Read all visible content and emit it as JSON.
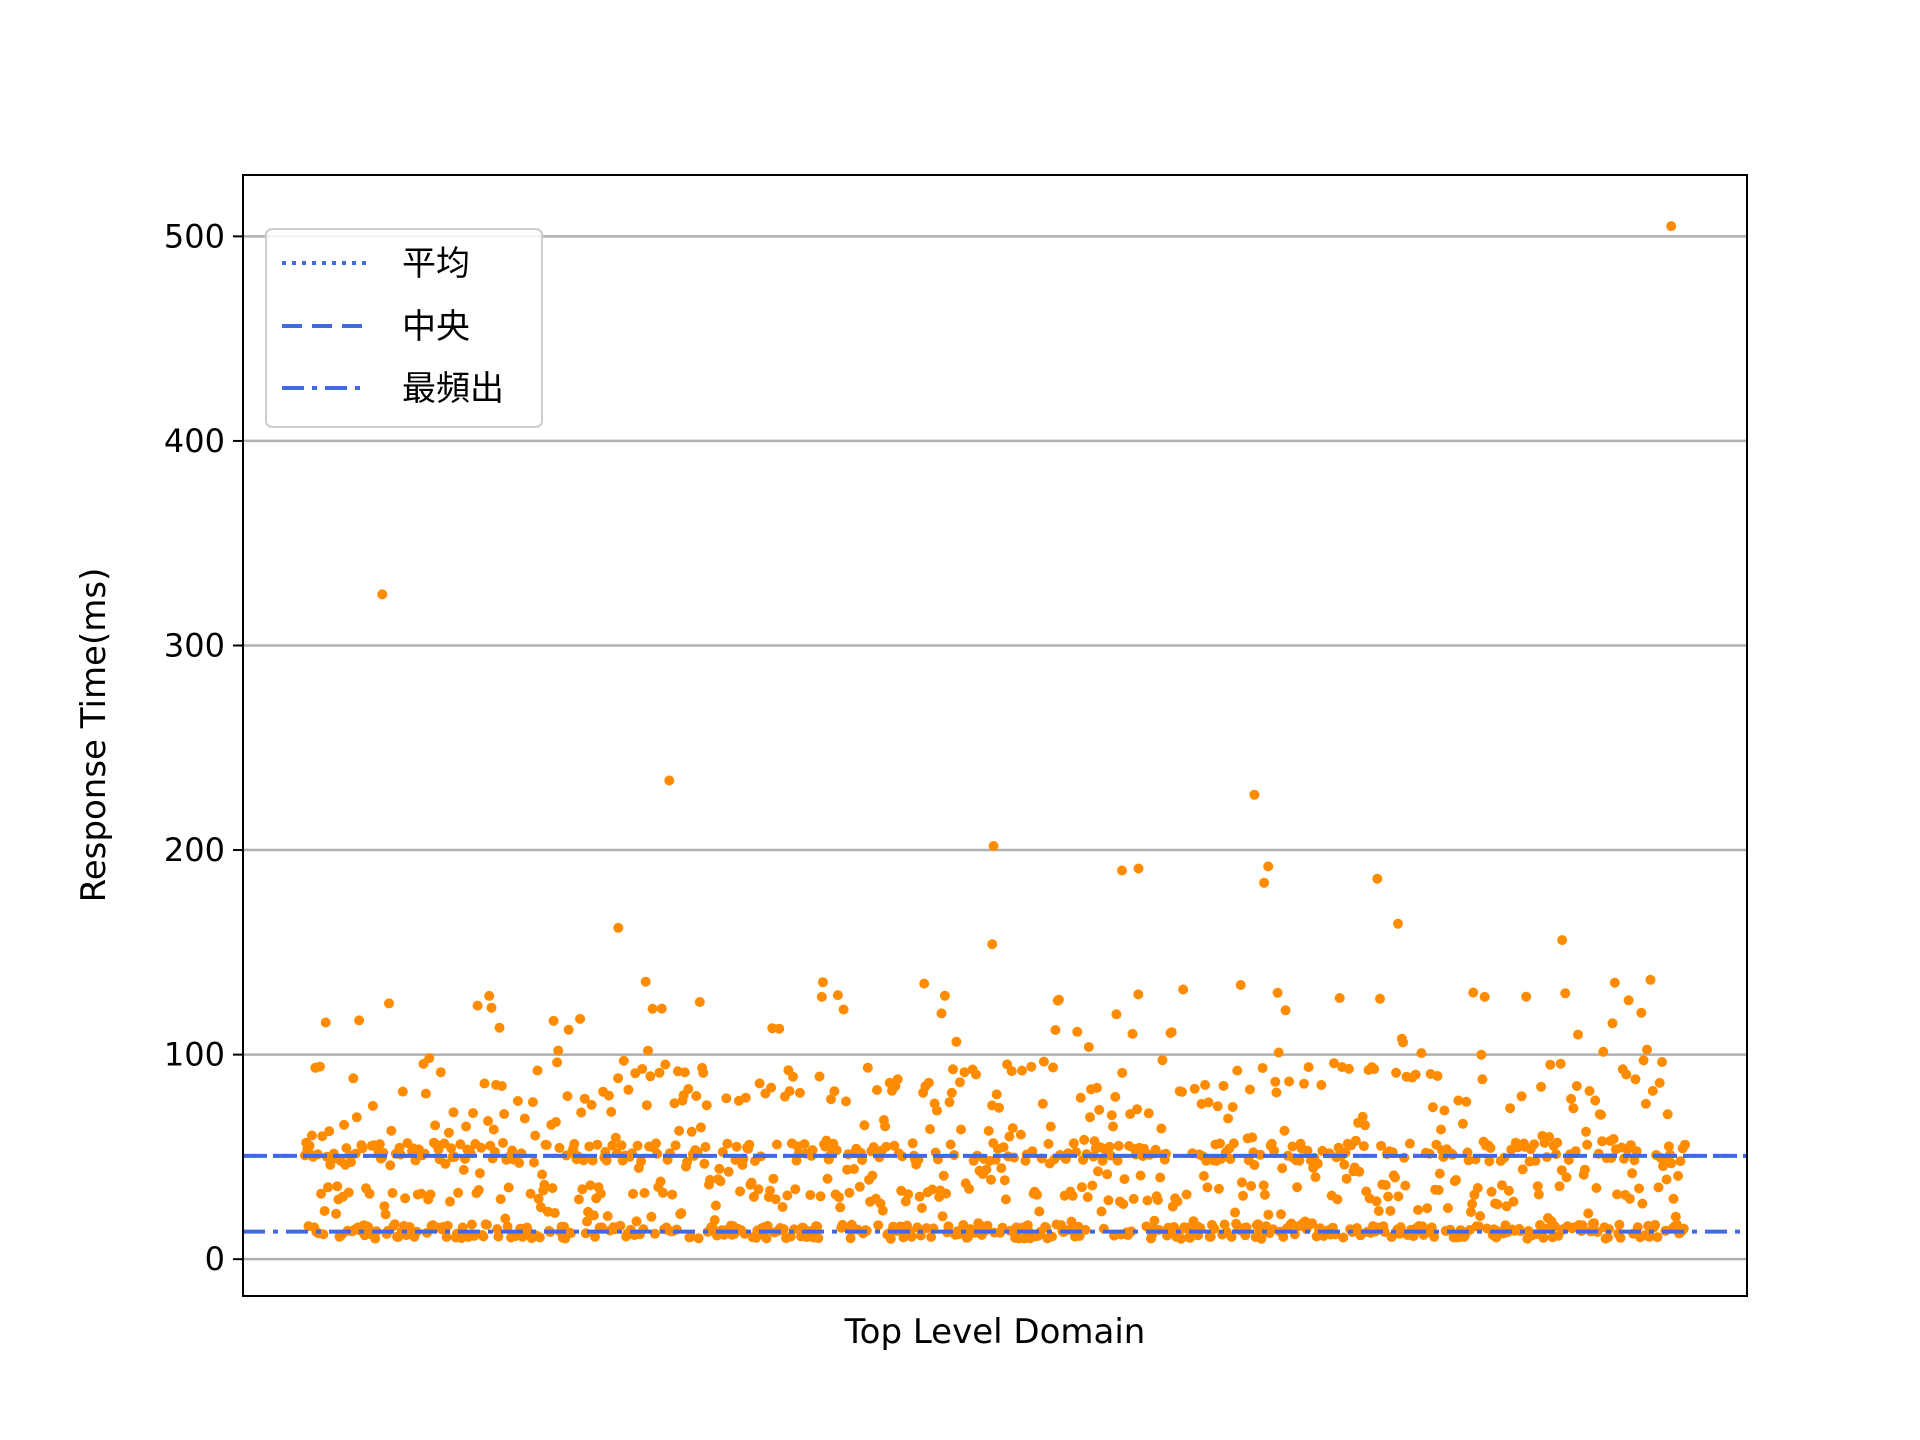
{
  "chart_data": {
    "type": "scatter",
    "title": "",
    "xlabel": "Top Level Domain",
    "ylabel": "Response Time(ms)",
    "ylim": [
      -18,
      530
    ],
    "yticks": [
      "0",
      "100",
      "200",
      "300",
      "400",
      "500"
    ],
    "ytick_values": [
      0,
      100,
      200,
      300,
      400,
      500
    ],
    "grid": "horizontal",
    "legend_position": "top-left",
    "point_color": "#ff8c00",
    "line_color": "#4169e1",
    "legend": [
      {
        "label": "平均",
        "style": "dotted"
      },
      {
        "label": "中央",
        "style": "dashed"
      },
      {
        "label": "最頻出",
        "style": "dashdot"
      }
    ],
    "reference_lines": {
      "mean": 50.5,
      "median": 50.5,
      "mode": 13.5
    },
    "point_count": 1200,
    "outliers": [
      {
        "x": 0.056,
        "y": 325
      },
      {
        "x": 0.264,
        "y": 234
      },
      {
        "x": 0.227,
        "y": 162
      },
      {
        "x": 0.499,
        "y": 202
      },
      {
        "x": 0.498,
        "y": 154
      },
      {
        "x": 0.592,
        "y": 190
      },
      {
        "x": 0.604,
        "y": 191
      },
      {
        "x": 0.688,
        "y": 227
      },
      {
        "x": 0.695,
        "y": 184
      },
      {
        "x": 0.698,
        "y": 192
      },
      {
        "x": 0.777,
        "y": 186
      },
      {
        "x": 0.792,
        "y": 164
      },
      {
        "x": 0.911,
        "y": 156
      },
      {
        "x": 0.99,
        "y": 505
      }
    ]
  }
}
